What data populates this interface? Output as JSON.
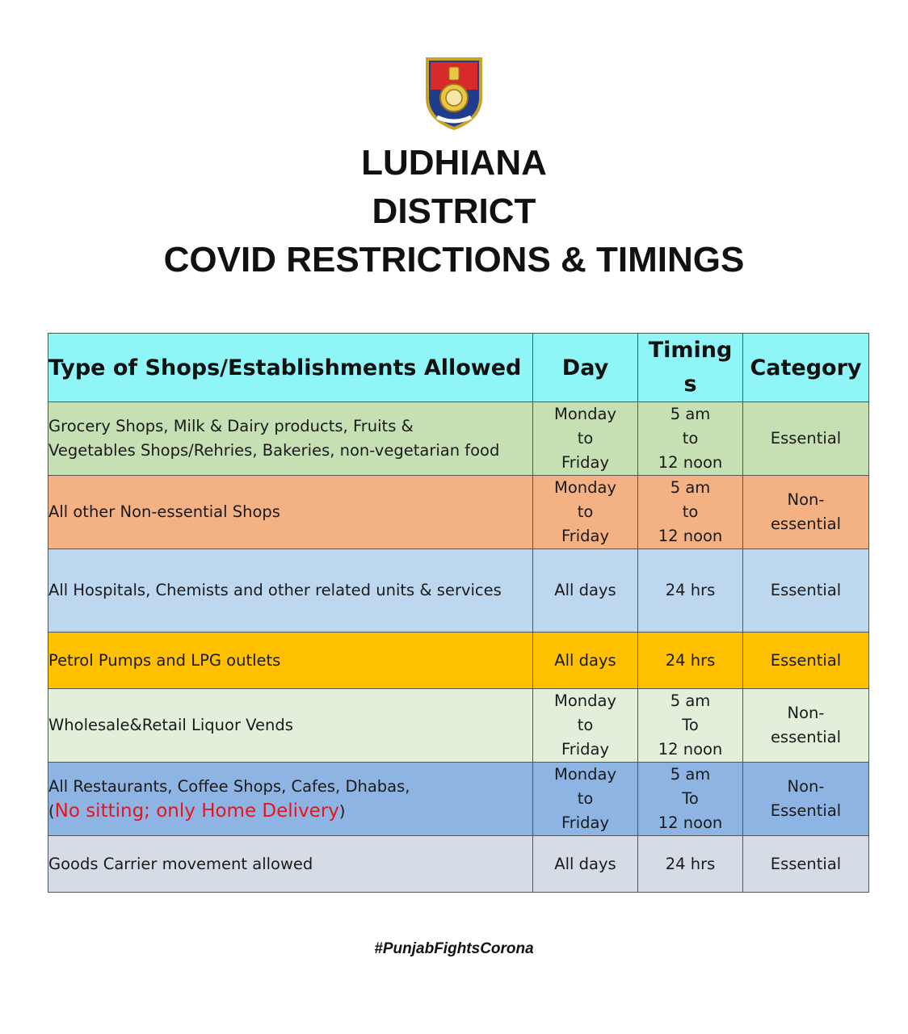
{
  "header": {
    "logo_icon": "punjab-police-emblem",
    "title_lines": [
      "LUDHIANA",
      "DISTRICT",
      "COVID RESTRICTIONS & TIMINGS"
    ]
  },
  "table": {
    "headers": {
      "type": "Type of Shops/Establishments Allowed",
      "day": "Day",
      "timing_line1": "Timing",
      "timing_line2": "s",
      "category": "Category"
    },
    "header_color": "#8ff5f7",
    "rows": [
      {
        "type_lines": [
          "Grocery Shops, Milk & Dairy products, Fruits &",
          "Vegetables Shops/Rehries, Bakeries, non-vegetarian food"
        ],
        "day_lines": [
          "Monday",
          "to",
          "Friday"
        ],
        "timing_lines": [
          "5 am",
          "to",
          "12 noon"
        ],
        "category_lines": [
          "Essential"
        ],
        "color": "#c6e0b4"
      },
      {
        "type_lines": [
          "All other Non-essential Shops"
        ],
        "day_lines": [
          "Monday",
          "to",
          "Friday"
        ],
        "timing_lines": [
          "5 am",
          "to",
          "12 noon"
        ],
        "category_lines": [
          "Non-",
          "essential"
        ],
        "color": "#f4b183"
      },
      {
        "type_lines": [
          "All Hospitals, Chemists and other related units & services"
        ],
        "day_lines": [
          "All days"
        ],
        "timing_lines": [
          "24 hrs"
        ],
        "category_lines": [
          "Essential"
        ],
        "color": "#bdd7ee"
      },
      {
        "type_lines": [
          "Petrol Pumps and LPG outlets"
        ],
        "day_lines": [
          "All days"
        ],
        "timing_lines": [
          "24 hrs"
        ],
        "category_lines": [
          "Essential"
        ],
        "color": "#ffc000"
      },
      {
        "type_lines": [
          "Wholesale&Retail Liquor Vends"
        ],
        "day_lines": [
          "Monday",
          "to",
          "Friday"
        ],
        "timing_lines": [
          "5 am",
          "To",
          "12 noon"
        ],
        "category_lines": [
          "Non-",
          "essential"
        ],
        "color": "#e2efda"
      },
      {
        "type_lines": [
          "All Restaurants, Coffee Shops, Cafes, Dhabas,"
        ],
        "type_note_open": "(",
        "type_note": "No sitting; only Home Delivery",
        "type_note_close": ")",
        "type_note_color": "#e8141c",
        "day_lines": [
          "Monday",
          "to",
          "Friday"
        ],
        "timing_lines": [
          "5 am",
          "To",
          "12 noon"
        ],
        "category_lines": [
          "Non-",
          "Essential"
        ],
        "color": "#8eb4e3"
      },
      {
        "type_lines": [
          "Goods Carrier movement allowed"
        ],
        "day_lines": [
          "All days"
        ],
        "timing_lines": [
          "24 hrs"
        ],
        "category_lines": [
          "Essential"
        ],
        "color": "#d6dce5"
      }
    ]
  },
  "footer": {
    "hashtag": "#PunjabFightsCorona"
  }
}
